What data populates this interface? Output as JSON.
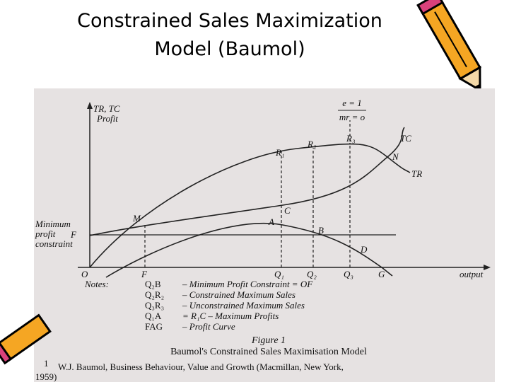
{
  "title": [
    "Constrained Sales Maximization",
    "Model (Baumol)"
  ],
  "figure": {
    "y_axis_label": [
      "TR, TC",
      "Profit"
    ],
    "x_axis_label": "output",
    "origin": "O",
    "elasticity_note": [
      "e = 1",
      "mr = o"
    ],
    "curves": {
      "tc": "TC",
      "tr": "TR"
    },
    "points": {
      "r1": "R₁",
      "r2": "R₂",
      "r3": "R₃",
      "n": "N",
      "m": "M",
      "c": "C",
      "a": "A",
      "b": "B",
      "d": "D"
    },
    "x_points": {
      "f": "F",
      "q1": "Q₁",
      "q2": "Q₂",
      "q3": "Q₃",
      "g": "G"
    },
    "constraint_label": [
      "Minimum",
      "profit",
      "constraint"
    ],
    "constraint_point": "F",
    "notes_heading": "Notes:",
    "notes": [
      {
        "key": "Q₂B",
        "text": "– Minimum Profit Constraint = OF"
      },
      {
        "key": "Q₂R₂",
        "text": "– Constrained Maximum Sales"
      },
      {
        "key": "Q₃R₃",
        "text": "– Unconstrained Maximum Sales"
      },
      {
        "key": "Q₁A",
        "text": "= R₁C – Maximum Profits"
      },
      {
        "key": "FAG",
        "text": "– Profit Curve"
      }
    ],
    "caption_number": "Figure 1",
    "caption": "Baumol's Constrained Sales Maximisation Model"
  },
  "footnote": {
    "marker": "1",
    "text": "W.J. Baumol, Business Behaviour, Value and Growth (Macmillan, New York,",
    "continuation": "1959)"
  }
}
